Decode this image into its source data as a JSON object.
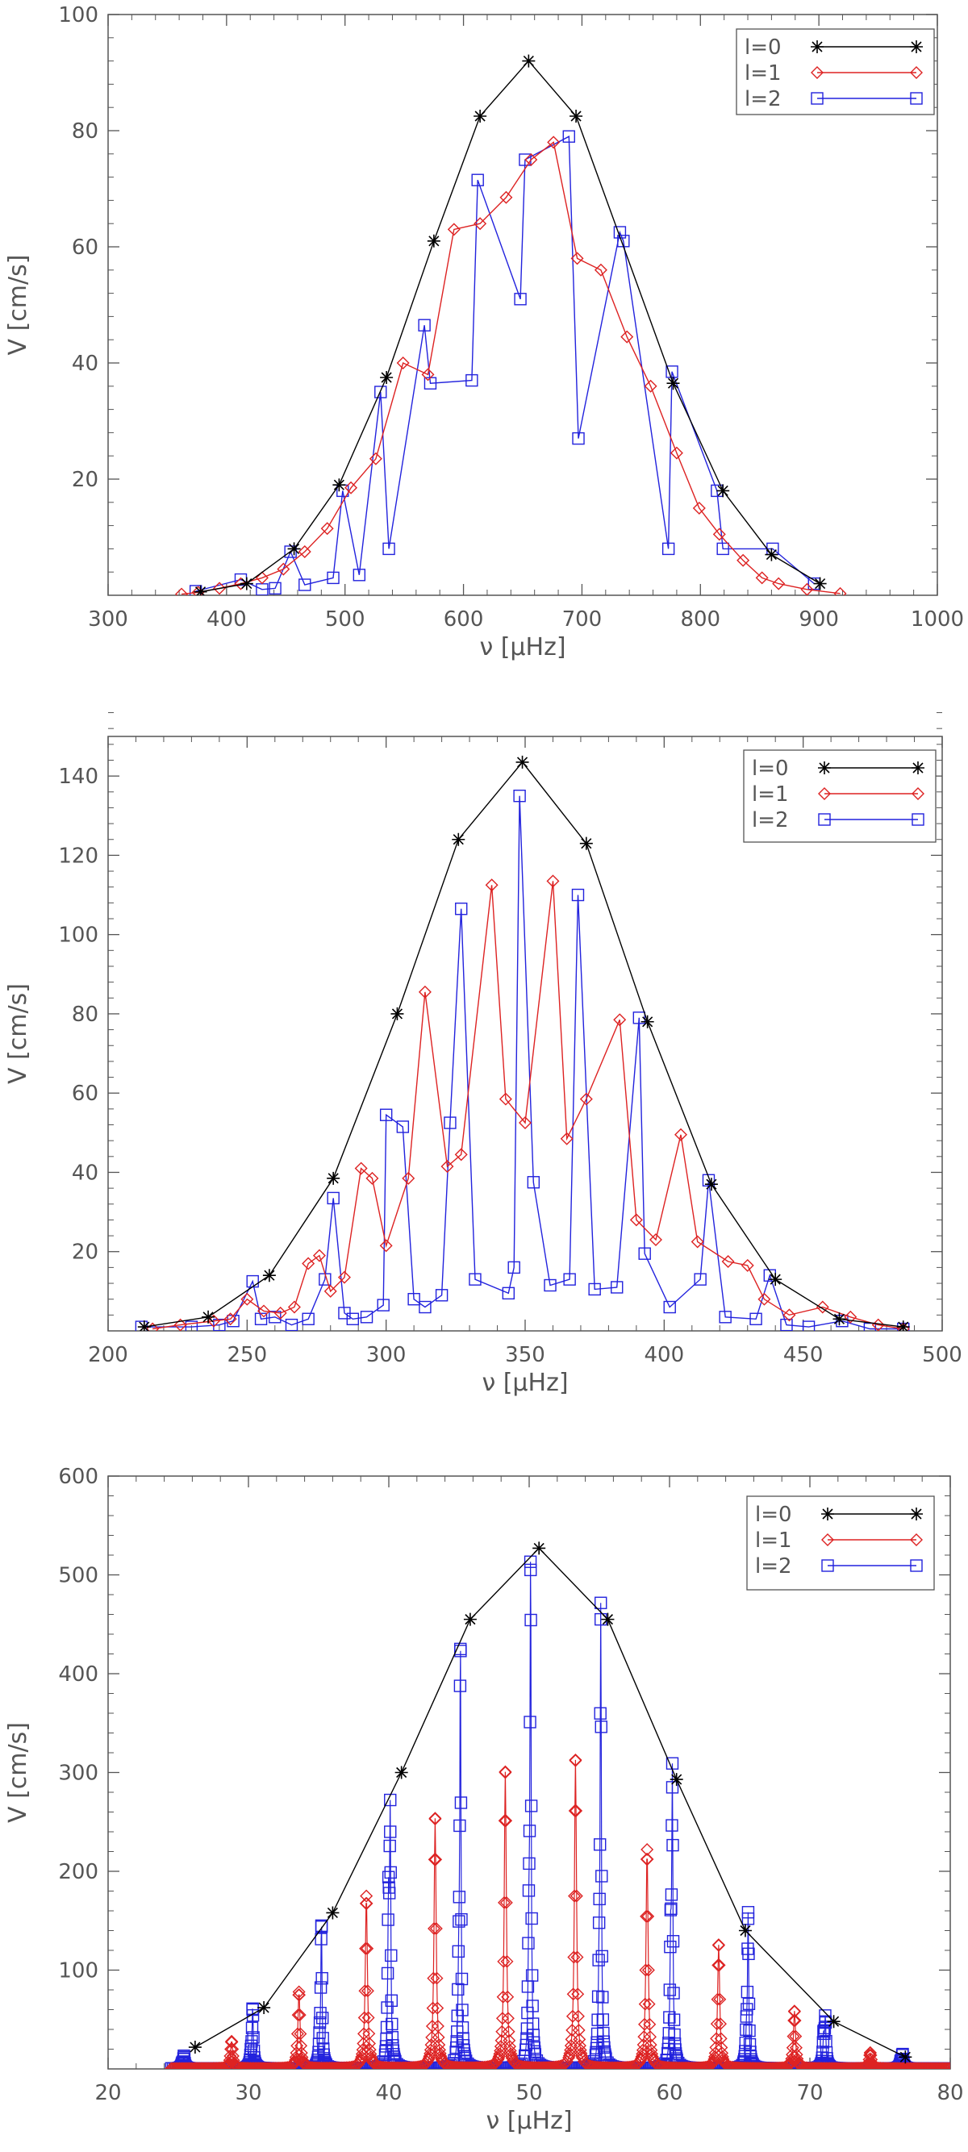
{
  "chart_data": [
    {
      "type": "line",
      "xlabel": "ν  [μHz]",
      "ylabel": "V  [cm/s]",
      "xlim": [
        300,
        1000
      ],
      "ylim": [
        0,
        100
      ],
      "xticks": [
        300,
        400,
        500,
        600,
        700,
        800,
        900,
        1000
      ],
      "yticks": [
        20,
        40,
        60,
        80,
        100
      ],
      "legend_position": "top-right",
      "grid": false,
      "series": [
        {
          "name": "l=0",
          "color": "#000000",
          "marker": "asterisk",
          "x": [
            378,
            417,
            457,
            495,
            535,
            575,
            614,
            655,
            695,
            777,
            819,
            860,
            901
          ],
          "y": [
            0.6,
            2.0,
            8.0,
            19.0,
            37.5,
            61.0,
            82.5,
            92.0,
            82.5,
            36.5,
            18.0,
            7.0,
            2.0
          ]
        },
        {
          "name": "l=1",
          "color": "#dd2222",
          "marker": "diamond",
          "x": [
            362,
            376,
            394,
            412,
            430,
            448,
            466,
            485,
            505,
            526,
            549,
            570,
            592,
            614,
            636,
            657,
            676,
            696,
            716,
            738,
            758,
            780,
            799,
            816,
            836,
            852,
            866,
            890,
            918
          ],
          "y": [
            0.2,
            0.5,
            1.2,
            2.0,
            3.0,
            4.5,
            7.5,
            11.5,
            18.5,
            23.5,
            40.0,
            38.0,
            63.0,
            64.0,
            68.5,
            75.0,
            78.0,
            58.0,
            56.0,
            44.5,
            36.0,
            24.5,
            15.0,
            10.5,
            6.0,
            3.0,
            2.0,
            1.0,
            0.3
          ]
        },
        {
          "name": "l=2",
          "color": "#2222dd",
          "marker": "square",
          "x": [
            374,
            412,
            430,
            441,
            454,
            466,
            490,
            498,
            512,
            530,
            537,
            567,
            572,
            607,
            612,
            648,
            652,
            689,
            697,
            732,
            735,
            773,
            776,
            814,
            819,
            861,
            896
          ],
          "y": [
            0.7,
            2.7,
            1.0,
            1.2,
            7.5,
            1.8,
            3.0,
            18.0,
            3.5,
            35.0,
            8.0,
            46.5,
            36.5,
            37.0,
            71.5,
            51.0,
            75.0,
            79.0,
            27.0,
            62.5,
            61.0,
            8.0,
            38.5,
            18.0,
            8.0,
            8.0,
            2.0
          ]
        }
      ]
    },
    {
      "type": "line",
      "xlabel": "ν  [μHz]",
      "ylabel": "V  [cm/s]",
      "xlim": [
        200,
        500
      ],
      "ylim": [
        0,
        150
      ],
      "xticks": [
        200,
        250,
        300,
        350,
        400,
        450,
        500
      ],
      "yticks": [
        20,
        40,
        60,
        80,
        100,
        120,
        140
      ],
      "legend_position": "top-right",
      "grid": false,
      "series": [
        {
          "name": "l=0",
          "color": "#000000",
          "marker": "asterisk",
          "x": [
            213,
            236,
            258,
            281,
            304,
            326,
            349,
            372,
            394,
            417,
            440,
            463,
            486
          ],
          "y": [
            1.0,
            3.5,
            14.0,
            38.5,
            80.0,
            124.0,
            143.5,
            123.0,
            78.0,
            37.0,
            13.0,
            3.0,
            1.0
          ]
        },
        {
          "name": "l=1",
          "color": "#dd2222",
          "marker": "diamond",
          "x": [
            216,
            226,
            238,
            244,
            250,
            256,
            262,
            267,
            272,
            276,
            280,
            285,
            291,
            295,
            300,
            308,
            314,
            322,
            327,
            338,
            343,
            350,
            360,
            365,
            372,
            384,
            390,
            397,
            406,
            412,
            423,
            430,
            436,
            445,
            457,
            467,
            477,
            486
          ],
          "y": [
            0.5,
            1.5,
            2.5,
            3.0,
            8.0,
            5.0,
            4.5,
            6.0,
            17.0,
            19.0,
            10.0,
            13.5,
            41.0,
            38.5,
            21.5,
            38.5,
            85.5,
            41.5,
            44.5,
            112.5,
            58.5,
            52.5,
            113.5,
            48.5,
            58.5,
            78.5,
            28.0,
            23.0,
            49.5,
            22.5,
            17.5,
            16.5,
            8.0,
            4.0,
            6.0,
            3.5,
            1.5,
            0.5
          ]
        },
        {
          "name": "l=2",
          "color": "#2222dd",
          "marker": "square",
          "x": [
            212,
            230,
            240,
            245,
            252,
            255,
            260,
            266,
            272,
            278,
            281,
            285,
            288,
            293,
            299,
            300,
            306,
            310,
            314,
            320,
            323,
            327,
            332,
            344,
            346,
            348,
            353,
            359,
            366,
            369,
            375,
            383,
            391,
            393,
            402,
            413,
            416,
            422,
            433,
            438,
            444,
            452,
            464,
            474,
            486
          ],
          "y": [
            1.0,
            1.0,
            1.5,
            2.5,
            12.5,
            3.0,
            3.5,
            1.5,
            3.0,
            13.0,
            33.5,
            4.5,
            3.0,
            3.5,
            6.5,
            54.5,
            51.5,
            8.0,
            6.0,
            9.0,
            52.5,
            106.5,
            13.0,
            9.5,
            16.0,
            135.0,
            37.5,
            11.5,
            13.0,
            110.0,
            10.5,
            11.0,
            79.0,
            19.5,
            6.0,
            13.0,
            38.0,
            3.5,
            3.0,
            14.0,
            1.5,
            1.0,
            2.5,
            0.5,
            0.5
          ]
        }
      ]
    },
    {
      "type": "line",
      "xlabel": "ν  [μHz]",
      "ylabel": "V  [cm/s]",
      "xlim": [
        20,
        80
      ],
      "ylim": [
        0,
        600
      ],
      "xticks": [
        20,
        30,
        40,
        50,
        60,
        70,
        80
      ],
      "yticks": [
        100,
        200,
        300,
        400,
        500,
        600
      ],
      "legend_position": "top-right",
      "grid": false,
      "series": [
        {
          "name": "l=0",
          "color": "#000000",
          "marker": "asterisk",
          "x": [
            26.2,
            31.1,
            36.0,
            40.9,
            45.8,
            50.7,
            55.6,
            60.5,
            65.4,
            71.7,
            76.8
          ],
          "y": [
            22,
            62,
            158,
            300,
            455,
            527,
            455,
            293,
            140,
            48,
            12
          ]
        },
        {
          "name": "l=1",
          "color": "#dd2222",
          "marker": "diamond",
          "peaks_x": [
            28.8,
            33.6,
            38.4,
            43.3,
            48.3,
            53.3,
            58.4,
            63.5,
            68.9,
            74.3
          ],
          "peaks_y": [
            28,
            78,
            175,
            253,
            300,
            312,
            222,
            125,
            58,
            16
          ]
        },
        {
          "name": "l=2",
          "color": "#2222dd",
          "marker": "square",
          "peaks_x": [
            25.4,
            30.3,
            35.2,
            40.1,
            45.1,
            50.1,
            55.1,
            60.2,
            65.6,
            71.1,
            76.6
          ],
          "peaks_y": [
            12,
            60,
            145,
            240,
            425,
            505,
            455,
            285,
            152,
            48,
            14
          ],
          "secondary_y": [
            4,
            12,
            22,
            158,
            78,
            118,
            80,
            118,
            30,
            32,
            6
          ]
        }
      ]
    }
  ]
}
